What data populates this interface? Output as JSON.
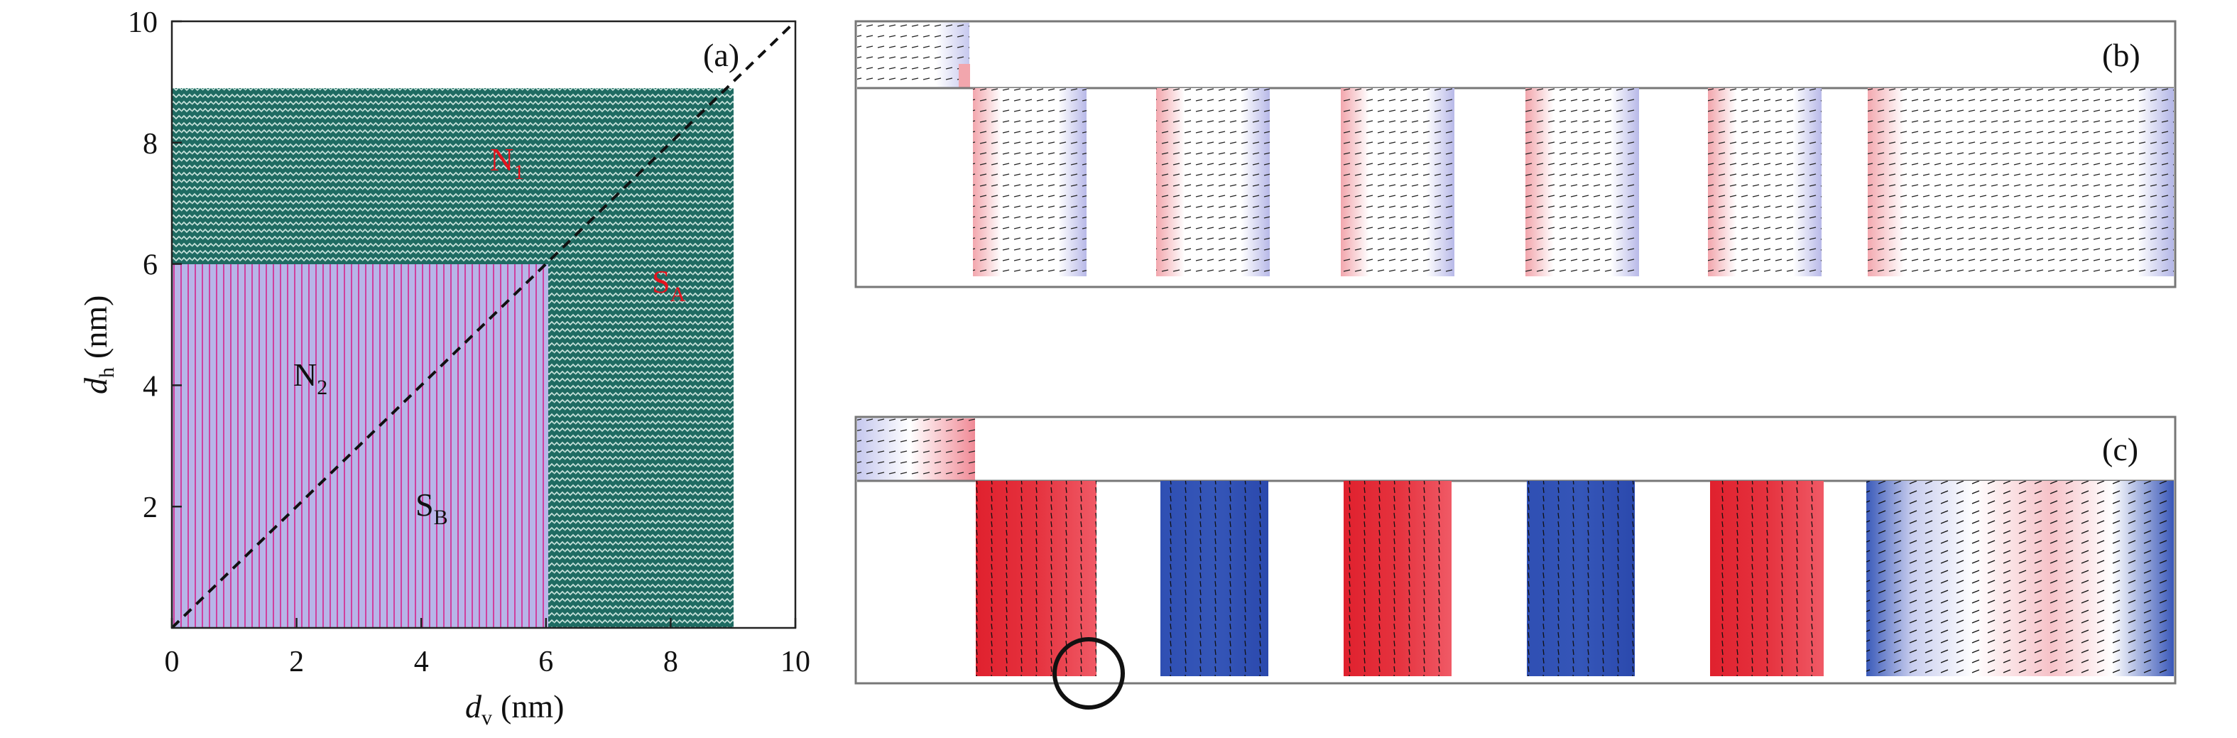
{
  "panel_a": {
    "label": "(a)",
    "x_axis_label": {
      "main": "d",
      "sub": "v",
      "unit": "(nm)"
    },
    "y_axis_label": {
      "main": "d",
      "sub": "h",
      "unit": "(nm)"
    },
    "x_ticks": [
      "0",
      "2",
      "4",
      "6",
      "8",
      "10"
    ],
    "y_ticks": [
      "2",
      "4",
      "6",
      "8",
      "10"
    ],
    "regions": [
      {
        "main": "N",
        "sub": "1",
        "color": "#e3141e"
      },
      {
        "main": "S",
        "sub": "A",
        "color": "#e3141e"
      },
      {
        "main": "N",
        "sub": "2",
        "color": "#111111"
      },
      {
        "main": "S",
        "sub": "B",
        "color": "#111111"
      }
    ],
    "colors": {
      "teal_region": "#1f6b62",
      "violet_region": "#b7b5e8",
      "stripe": "#d0409e"
    }
  },
  "panel_b": {
    "label": "(b)"
  },
  "panel_c": {
    "label": "(c)"
  },
  "chart_data": {
    "type": "area",
    "title": "",
    "xlabel": "d_v (nm)",
    "ylabel": "d_h (nm)",
    "xlim": [
      0,
      10
    ],
    "ylim": [
      0,
      10
    ],
    "grid": false,
    "series": [
      {
        "name": "N1",
        "polygon": [
          [
            0,
            6
          ],
          [
            0,
            8.9
          ],
          [
            8.9,
            8.9
          ],
          [
            6,
            6
          ]
        ]
      },
      {
        "name": "SA",
        "polygon": [
          [
            6,
            0
          ],
          [
            6,
            6
          ],
          [
            8.9,
            8.9
          ],
          [
            9,
            8.9
          ],
          [
            9,
            0
          ]
        ]
      },
      {
        "name": "N2",
        "polygon": [
          [
            0,
            0
          ],
          [
            0,
            6
          ],
          [
            6,
            6
          ]
        ]
      },
      {
        "name": "SB",
        "polygon": [
          [
            0,
            0
          ],
          [
            6,
            6
          ],
          [
            6,
            0
          ]
        ]
      },
      {
        "name": "diagonal",
        "line": [
          [
            0,
            0
          ],
          [
            10,
            10
          ]
        ]
      }
    ]
  }
}
